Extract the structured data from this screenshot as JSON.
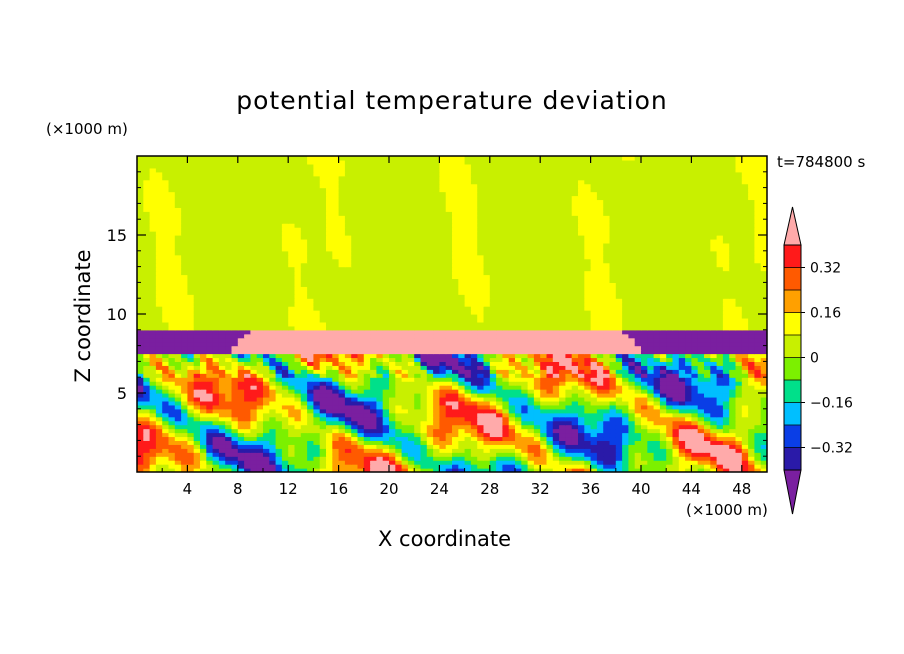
{
  "chart_data": {
    "type": "heatmap",
    "title": "potential temperature deviation",
    "time_label": "t=784800 s",
    "xlabel": "X coordinate",
    "ylabel": "Z coordinate",
    "x_unit": "(×1000 m)",
    "y_unit": "(×1000 m)",
    "xlim": [
      0,
      50
    ],
    "ylim": [
      0,
      20
    ],
    "x_ticks": [
      "4",
      "8",
      "12",
      "16",
      "20",
      "24",
      "28",
      "32",
      "36",
      "40",
      "44",
      "48"
    ],
    "x_tick_values": [
      4,
      8,
      12,
      16,
      20,
      24,
      28,
      32,
      36,
      40,
      44,
      48
    ],
    "y_ticks": [
      "5",
      "10",
      "15"
    ],
    "y_tick_values": [
      5,
      10,
      15
    ],
    "colorbar": {
      "labels": [
        "0.32",
        "0.16",
        "0",
        "−0.16",
        "−0.32"
      ],
      "label_values": [
        0.32,
        0.16,
        0,
        -0.16,
        -0.32
      ],
      "levels": [
        -0.4,
        -0.32,
        -0.24,
        -0.16,
        -0.08,
        0,
        0.08,
        0.16,
        0.24,
        0.32,
        0.4
      ],
      "colors": [
        "#7a1fa0",
        "#2a1aa8",
        "#0a3ee6",
        "#00bfff",
        "#00e08a",
        "#7cf000",
        "#c8f000",
        "#ffff00",
        "#ffa000",
        "#ff5a00",
        "#ff1a1a",
        "#ffaaaa"
      ],
      "extend": "both"
    },
    "regions": {
      "stratosphere_upper_value": 0.04,
      "stratosphere_lower_value": 0.1,
      "inversion_layer": {
        "z_range": [
          7.5,
          9.0
        ],
        "value": 0.45
      },
      "cold_pools": [
        {
          "x_range": [
            0,
            9
          ],
          "z_range": [
            7.5,
            9.0
          ],
          "value": -0.45
        },
        {
          "x_range": [
            38.5,
            50
          ],
          "z_range": [
            7.5,
            9.0
          ],
          "value": -0.45
        }
      ]
    }
  }
}
